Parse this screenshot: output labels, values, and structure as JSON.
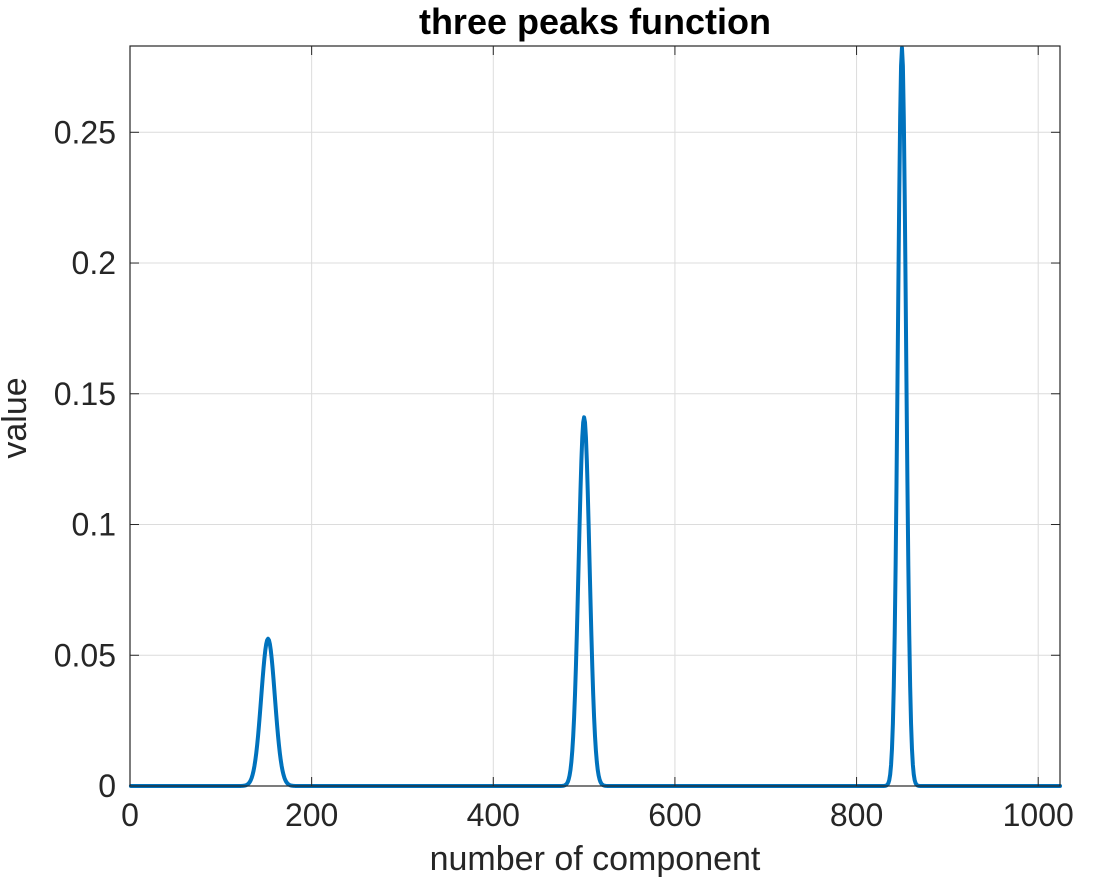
{
  "chart_data": {
    "type": "line",
    "title": "three peaks function",
    "xlabel": "number of component",
    "ylabel": "value",
    "xlim": [
      0,
      1024
    ],
    "ylim": [
      0,
      0.283
    ],
    "x_ticks": [
      0,
      200,
      400,
      600,
      800,
      1000
    ],
    "x_tick_labels": [
      "0",
      "200",
      "400",
      "600",
      "800",
      "1000"
    ],
    "y_ticks": [
      0,
      0.05,
      0.1,
      0.15,
      0.2,
      0.25
    ],
    "y_tick_labels": [
      "0",
      "0.05",
      "0.1",
      "0.15",
      "0.2",
      "0.25"
    ],
    "grid": true,
    "series": [
      {
        "color": "#0072BD",
        "x_range": [
          1,
          1024
        ],
        "peaks": [
          {
            "center": 152,
            "height": 0.0563,
            "sigma": 7.5
          },
          {
            "center": 500,
            "height": 0.141,
            "sigma": 6.0
          },
          {
            "center": 850,
            "height": 0.2823,
            "sigma": 4.5
          }
        ]
      }
    ]
  }
}
